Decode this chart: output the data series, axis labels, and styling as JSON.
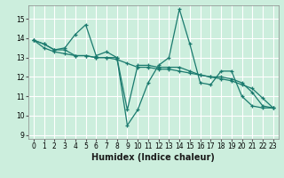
{
  "xlabel": "Humidex (Indice chaleur)",
  "background_color": "#cceedd",
  "grid_color": "#ffffff",
  "line_color": "#1a7a6e",
  "xlim": [
    -0.5,
    23.5
  ],
  "ylim": [
    8.8,
    15.7
  ],
  "yticks": [
    9,
    10,
    11,
    12,
    13,
    14,
    15
  ],
  "xticks": [
    0,
    1,
    2,
    3,
    4,
    5,
    6,
    7,
    8,
    9,
    10,
    11,
    12,
    13,
    14,
    15,
    16,
    17,
    18,
    19,
    20,
    21,
    22,
    23
  ],
  "series": [
    [
      13.9,
      13.7,
      13.4,
      13.5,
      14.2,
      14.7,
      13.1,
      13.3,
      13.0,
      9.5,
      10.3,
      11.7,
      12.6,
      13.0,
      15.5,
      13.7,
      11.7,
      11.6,
      12.3,
      12.3,
      11.0,
      10.5,
      10.4,
      10.4
    ],
    [
      13.9,
      13.7,
      13.4,
      13.4,
      13.1,
      13.1,
      13.0,
      13.0,
      13.0,
      10.3,
      12.6,
      12.6,
      12.5,
      12.5,
      12.5,
      12.3,
      12.1,
      12.0,
      12.0,
      11.9,
      11.7,
      11.2,
      10.5,
      10.4
    ],
    [
      13.9,
      13.5,
      13.3,
      13.2,
      13.1,
      13.1,
      13.0,
      13.0,
      12.9,
      12.7,
      12.5,
      12.5,
      12.4,
      12.4,
      12.3,
      12.2,
      12.1,
      12.0,
      11.9,
      11.8,
      11.6,
      11.4,
      10.9,
      10.4
    ]
  ],
  "xlabel_fontsize": 7,
  "tick_fontsize": 5.5,
  "linewidth": 0.9,
  "markersize": 3
}
